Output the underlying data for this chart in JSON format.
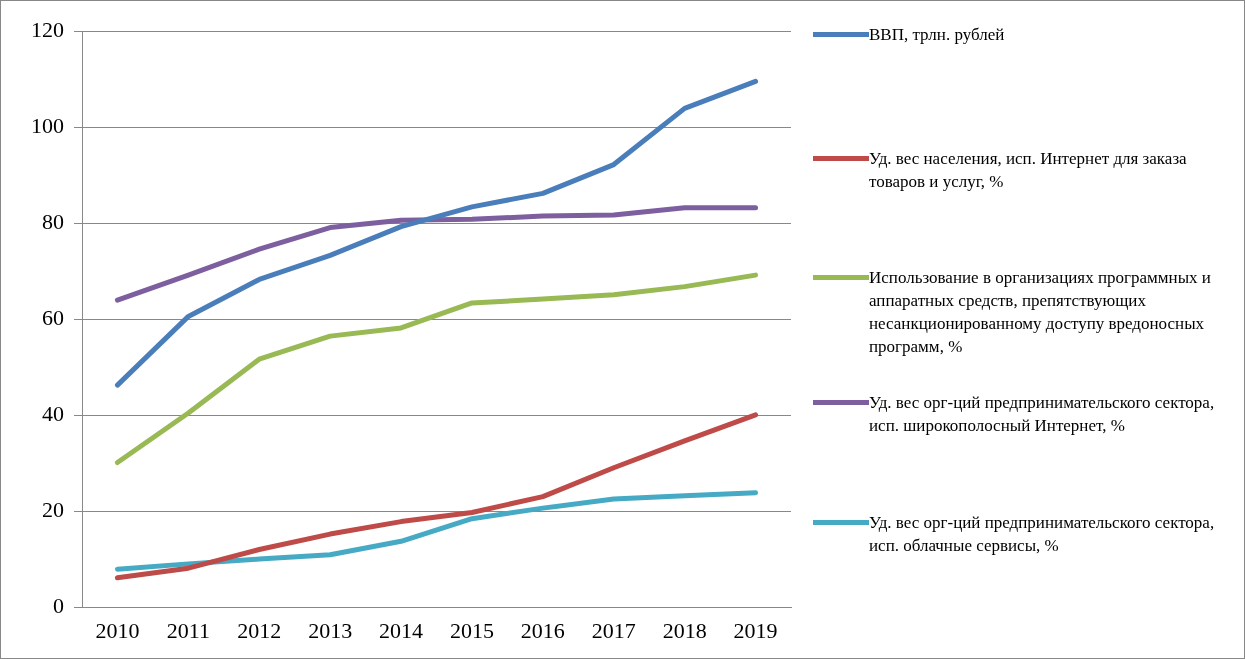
{
  "chart_data": {
    "type": "line",
    "categories": [
      "2010",
      "2011",
      "2012",
      "2013",
      "2014",
      "2015",
      "2016",
      "2017",
      "2018",
      "2019"
    ],
    "ylim": [
      0,
      120
    ],
    "yticks": [
      0,
      20,
      40,
      60,
      80,
      100,
      120
    ],
    "grid": "y",
    "legend": "right",
    "marker": "none",
    "line_style": "solid",
    "series": [
      {
        "name": "ВВП, трлн. рублей",
        "color": "#4a7ebb",
        "values": [
          46.3,
          60.6,
          68.3,
          73.3,
          79.3,
          83.4,
          86.2,
          92.2,
          103.9,
          109.5
        ]
      },
      {
        "name": "Уд. вес населения, исп. Интернет для заказа товаров и услуг, %",
        "color": "#be4b48",
        "values": [
          6.2,
          8.2,
          12.1,
          15.3,
          17.9,
          19.8,
          23.1,
          29.1,
          34.7,
          40.1
        ]
      },
      {
        "name": "Использование в организациях программных и аппаратных средств, препятствующих несанкционированному доступу вредоносных программ, %",
        "color": "#98b954",
        "values": [
          30.2,
          40.5,
          51.7,
          56.5,
          58.2,
          63.4,
          64.2,
          65.1,
          66.8,
          69.2
        ]
      },
      {
        "name": "Уд. вес орг-ций предпринимательского сектора, исп. широкополосный Интернет, %",
        "color": "#7d5fa0",
        "values": [
          64,
          69.2,
          74.6,
          79.1,
          80.6,
          80.8,
          81.5,
          81.7,
          83.2,
          83.2
        ]
      },
      {
        "name": "Уд. вес орг-ций предпринимательского сектора, исп. облачные сервисы, %",
        "color": "#46aac5",
        "values": [
          8,
          9.1,
          10.1,
          11,
          13.8,
          18.5,
          20.7,
          22.6,
          23.3,
          23.9
        ]
      }
    ]
  }
}
